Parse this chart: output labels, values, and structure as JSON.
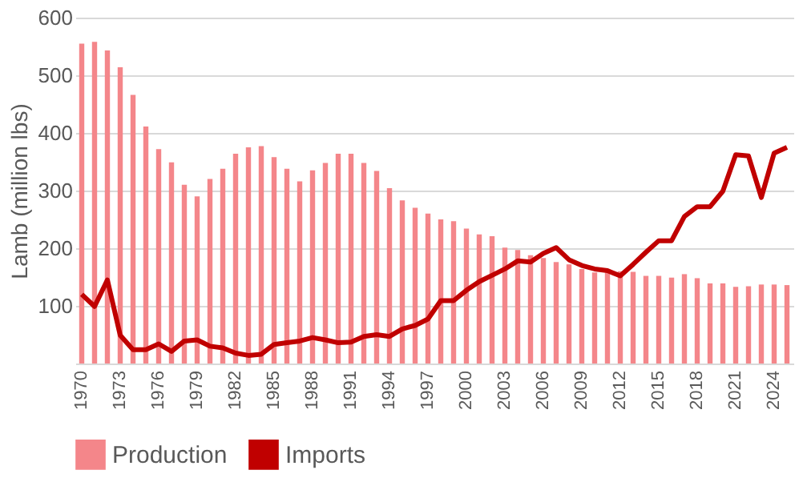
{
  "chart_data": {
    "type": "bar",
    "ylabel": "Lamb (million lbs)",
    "categories": [
      "1970",
      null,
      null,
      "1973",
      null,
      null,
      "1976",
      null,
      null,
      "1979",
      null,
      null,
      "1982",
      null,
      null,
      "1985",
      null,
      null,
      "1988",
      null,
      null,
      "1991",
      null,
      null,
      "1994",
      null,
      null,
      "1997",
      null,
      null,
      "2000",
      null,
      null,
      "2003",
      null,
      null,
      "2006",
      null,
      null,
      "2009",
      null,
      null,
      "2012",
      null,
      null,
      "2015",
      null,
      null,
      "2018",
      null,
      null,
      "2021",
      null,
      null,
      "2024",
      null
    ],
    "series": [
      {
        "name": "Production",
        "color": "#f4868a",
        "values": [
          555,
          558,
          543,
          514,
          466,
          411,
          372,
          349,
          310,
          290,
          320,
          338,
          364,
          375,
          377,
          358,
          338,
          316,
          335,
          348,
          364,
          364,
          348,
          334,
          304,
          283,
          270,
          260,
          250,
          247,
          234,
          224,
          221,
          201,
          197,
          188,
          183,
          176,
          172,
          164,
          158,
          158,
          160,
          159,
          152,
          152,
          149,
          155,
          148,
          139,
          139,
          133,
          134,
          137,
          137,
          136
        ]
      },
      {
        "name": "Imports",
        "type": "line",
        "color": "#c00000",
        "values": [
          120,
          99,
          145,
          49,
          24,
          24,
          34,
          21,
          39,
          41,
          30,
          27,
          18,
          14,
          16,
          33,
          36,
          39,
          45,
          41,
          36,
          37,
          47,
          50,
          47,
          60,
          66,
          77,
          109,
          109,
          127,
          142,
          153,
          164,
          178,
          176,
          191,
          201,
          180,
          170,
          164,
          161,
          152,
          172,
          193,
          213,
          213,
          255,
          272,
          272,
          299,
          362,
          360,
          288,
          365,
          375
        ]
      }
    ],
    "ylim": [
      0,
      600
    ],
    "yticks": [
      {
        "value": 0,
        "label": null
      },
      100,
      200,
      300,
      400,
      500,
      600
    ],
    "grid": "y",
    "legend": "bottom",
    "line_style": "solid",
    "marker": "none"
  }
}
